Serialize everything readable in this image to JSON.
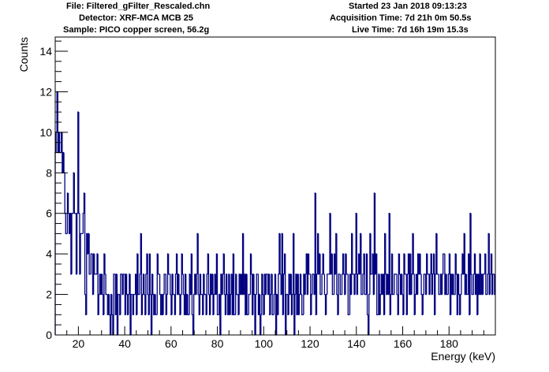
{
  "header": {
    "file_line": "File: Filtered_gFilter_Rescaled.chn",
    "detector_line": "Detector: XRF-MCA MCB 25",
    "sample_line": "Sample: PICO copper screen, 56.2g",
    "started_line": "Started 23 Jan 2018 09:13:23",
    "acq_line": "Acquisition Time: 7d 21h 0m 50.5s",
    "live_line": "Live Time: 7d 16h 19m 15.3s"
  },
  "chart_data": {
    "type": "histogram",
    "xlabel": "Energy (keV)",
    "ylabel": "Counts",
    "xlim": [
      10,
      200
    ],
    "ylim": [
      0,
      14.7
    ],
    "xticks": [
      20,
      40,
      60,
      80,
      100,
      120,
      140,
      160,
      180
    ],
    "yticks": [
      0,
      2,
      4,
      6,
      8,
      10,
      12,
      14
    ],
    "bin_width": 0.4,
    "line_color": "#000080",
    "values": [
      9,
      10,
      12,
      9,
      10,
      9,
      9,
      10,
      8,
      9,
      8,
      6,
      5,
      5,
      7,
      6,
      5,
      6,
      3,
      6,
      6,
      8,
      6,
      6,
      3,
      6,
      11,
      6,
      3,
      5,
      5,
      5,
      6,
      7,
      2,
      1,
      5,
      4,
      5,
      3,
      3,
      4,
      4,
      2,
      4,
      3,
      3,
      3,
      4,
      1,
      2,
      3,
      2,
      3,
      2,
      1,
      4,
      3,
      2,
      2,
      1,
      2,
      1,
      0,
      2,
      1,
      0,
      3,
      3,
      1,
      3,
      0,
      2,
      2,
      1,
      3,
      3,
      2,
      3,
      3,
      1,
      3,
      2,
      1,
      2,
      3,
      0,
      2,
      2,
      1,
      2,
      2,
      3,
      1,
      4,
      2,
      2,
      3,
      5,
      1,
      2,
      3,
      2,
      1,
      3,
      4,
      2,
      1,
      4,
      2,
      0,
      3,
      2,
      1,
      2,
      1,
      1,
      4,
      3,
      3,
      2,
      1,
      2,
      1,
      2,
      3,
      3,
      1,
      2,
      4,
      3,
      3,
      2,
      1,
      3,
      2,
      2,
      1,
      3,
      4,
      2,
      3,
      2,
      1,
      2,
      4,
      3,
      2,
      1,
      3,
      1,
      2,
      1,
      1,
      3,
      2,
      4,
      1,
      0,
      2,
      3,
      2,
      3,
      5,
      2,
      1,
      3,
      2,
      2,
      1,
      3,
      2,
      2,
      1,
      3,
      4,
      2,
      1,
      3,
      2,
      3,
      1,
      2,
      3,
      2,
      4,
      1,
      1,
      2,
      0,
      3,
      2,
      3,
      4,
      2,
      1,
      3,
      2,
      1,
      3,
      1,
      2,
      3,
      1,
      4,
      1,
      1,
      3,
      2,
      2,
      1,
      3,
      2,
      3,
      2,
      5,
      2,
      3,
      1,
      3,
      1,
      1,
      2,
      2,
      4,
      3,
      1,
      3,
      2,
      0,
      2,
      3,
      3,
      1,
      2,
      0,
      1,
      3,
      2,
      1,
      3,
      2,
      3,
      3,
      2,
      3,
      1,
      2,
      3,
      1,
      1,
      2,
      3,
      0,
      2,
      1,
      3,
      5,
      3,
      2,
      5,
      1,
      3,
      4,
      0,
      2,
      2,
      1,
      3,
      2,
      3,
      1,
      2,
      5,
      0,
      2,
      3,
      1,
      3,
      1,
      2,
      3,
      2,
      1,
      1,
      3,
      2,
      3,
      4,
      2,
      4,
      3,
      3,
      1,
      2,
      3,
      3,
      2,
      7,
      1,
      3,
      5,
      3,
      4,
      2,
      2,
      3,
      4,
      3,
      2,
      1,
      2,
      3,
      3,
      3,
      6,
      3,
      4,
      2,
      2,
      4,
      3,
      5,
      2,
      1,
      3,
      3,
      2,
      2,
      3,
      4,
      3,
      2,
      4,
      3,
      3,
      1,
      1,
      3,
      2,
      5,
      3,
      3,
      2,
      3,
      6,
      2,
      3,
      4,
      3,
      5,
      2,
      2,
      3,
      4,
      2,
      2,
      4,
      1,
      0,
      2,
      5,
      3,
      3,
      4,
      2,
      7,
      3,
      4,
      1,
      1,
      3,
      1,
      2,
      3,
      2,
      3,
      1,
      5,
      3,
      2,
      3,
      2,
      6,
      1,
      2,
      4,
      2,
      2,
      3,
      3,
      3,
      2,
      1,
      4,
      3,
      2,
      3,
      2,
      1,
      4,
      3,
      3,
      1,
      3,
      4,
      2,
      4,
      2,
      3,
      5,
      3,
      1,
      2,
      3,
      2,
      4,
      3,
      4,
      3,
      2,
      1,
      2,
      3,
      3,
      2,
      4,
      3,
      3,
      2,
      3,
      4,
      2,
      3,
      4,
      1,
      3,
      5,
      3,
      3,
      2,
      2,
      3,
      2,
      3,
      4,
      4,
      2,
      3,
      2,
      2,
      3,
      4,
      1,
      3,
      2,
      3,
      2,
      2,
      4,
      3,
      1,
      3,
      2,
      1,
      2,
      3,
      4,
      3,
      5,
      2,
      3,
      2,
      2,
      4,
      1,
      6,
      3,
      2,
      2,
      3,
      4,
      2,
      3,
      1,
      3,
      2,
      4,
      2,
      3,
      2,
      3,
      3,
      4,
      2,
      2,
      3,
      5,
      2,
      3,
      4,
      2,
      3,
      3,
      2
    ]
  }
}
